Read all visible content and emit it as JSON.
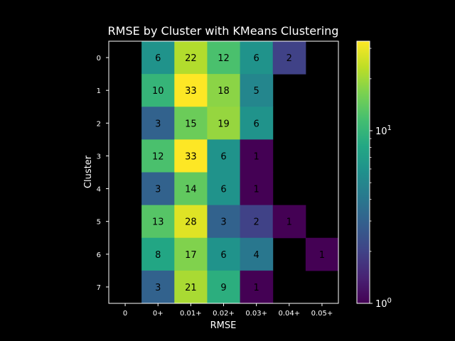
{
  "chart_data": {
    "type": "heatmap",
    "title": "RMSE by Cluster with KMeans Clustering",
    "xlabel": "RMSE",
    "ylabel": "Cluster",
    "x_categories": [
      "0",
      "0+",
      "0.01+",
      "0.02+",
      "0.03+",
      "0.04+",
      "0.05+"
    ],
    "y_categories": [
      "0",
      "1",
      "2",
      "3",
      "4",
      "5",
      "6",
      "7"
    ],
    "values": [
      [
        null,
        6,
        22,
        12,
        6,
        2,
        null
      ],
      [
        null,
        10,
        33,
        18,
        5,
        null,
        null
      ],
      [
        null,
        3,
        15,
        19,
        6,
        null,
        null
      ],
      [
        null,
        12,
        33,
        6,
        1,
        null,
        null
      ],
      [
        null,
        3,
        14,
        6,
        1,
        null,
        null
      ],
      [
        null,
        13,
        28,
        3,
        2,
        1,
        null
      ],
      [
        null,
        8,
        17,
        6,
        4,
        null,
        1
      ],
      [
        null,
        3,
        21,
        9,
        1,
        null,
        null
      ]
    ],
    "colormap": "viridis",
    "color_scale": "log",
    "color_range": [
      1,
      33
    ],
    "colorbar_ticks": [
      {
        "value": 1,
        "base": "10",
        "exp": "0"
      },
      {
        "value": 10,
        "base": "10",
        "exp": "1"
      }
    ],
    "background": "#000000",
    "text_color": "#ffffff"
  }
}
